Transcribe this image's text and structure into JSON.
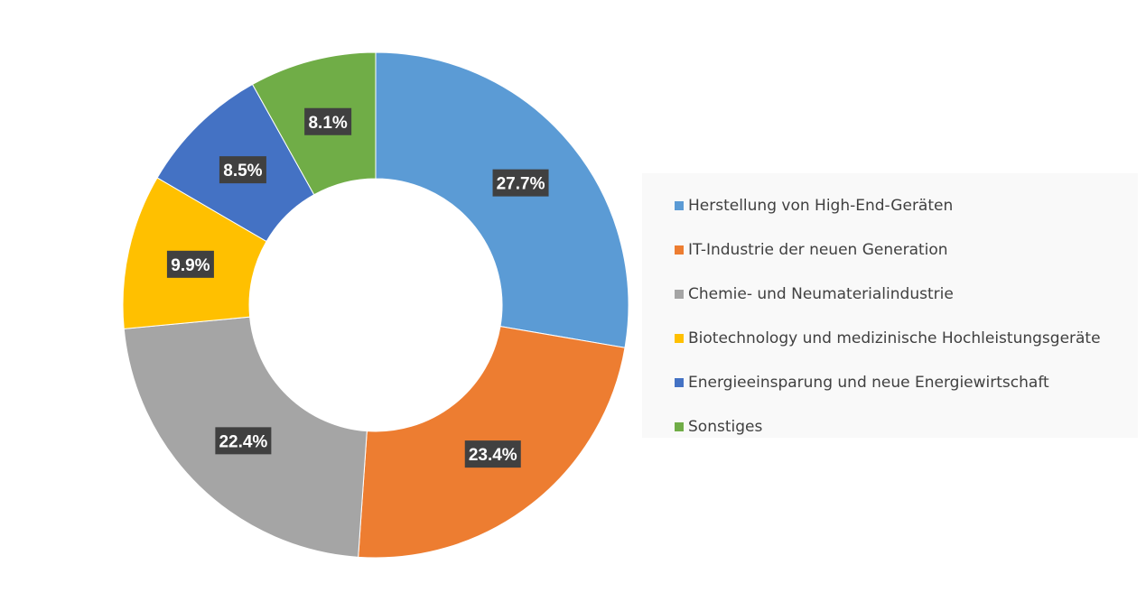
{
  "chart_data": {
    "type": "pie",
    "donut": true,
    "title": "",
    "categories": [
      "Herstellung von High-End-Geräten",
      "IT-Industrie der neuen Generation",
      "Chemie- und Neumaterialindustrie",
      "Biotechnology und medizinische Hochleistungsgeräte",
      "Energieeinsparung und neue Energiewirtschaft",
      "Sonstiges"
    ],
    "values": [
      27.7,
      23.4,
      22.4,
      9.9,
      8.5,
      8.1
    ],
    "data_labels": [
      "27.7%",
      "23.4%",
      "22.4%",
      "9.9%",
      "8.5%",
      "8.1%"
    ],
    "colors": [
      "#5b9bd5",
      "#ed7d31",
      "#a5a5a5",
      "#ffc000",
      "#4472c4",
      "#70ad47"
    ],
    "unit": "%",
    "legend_position": "right"
  }
}
